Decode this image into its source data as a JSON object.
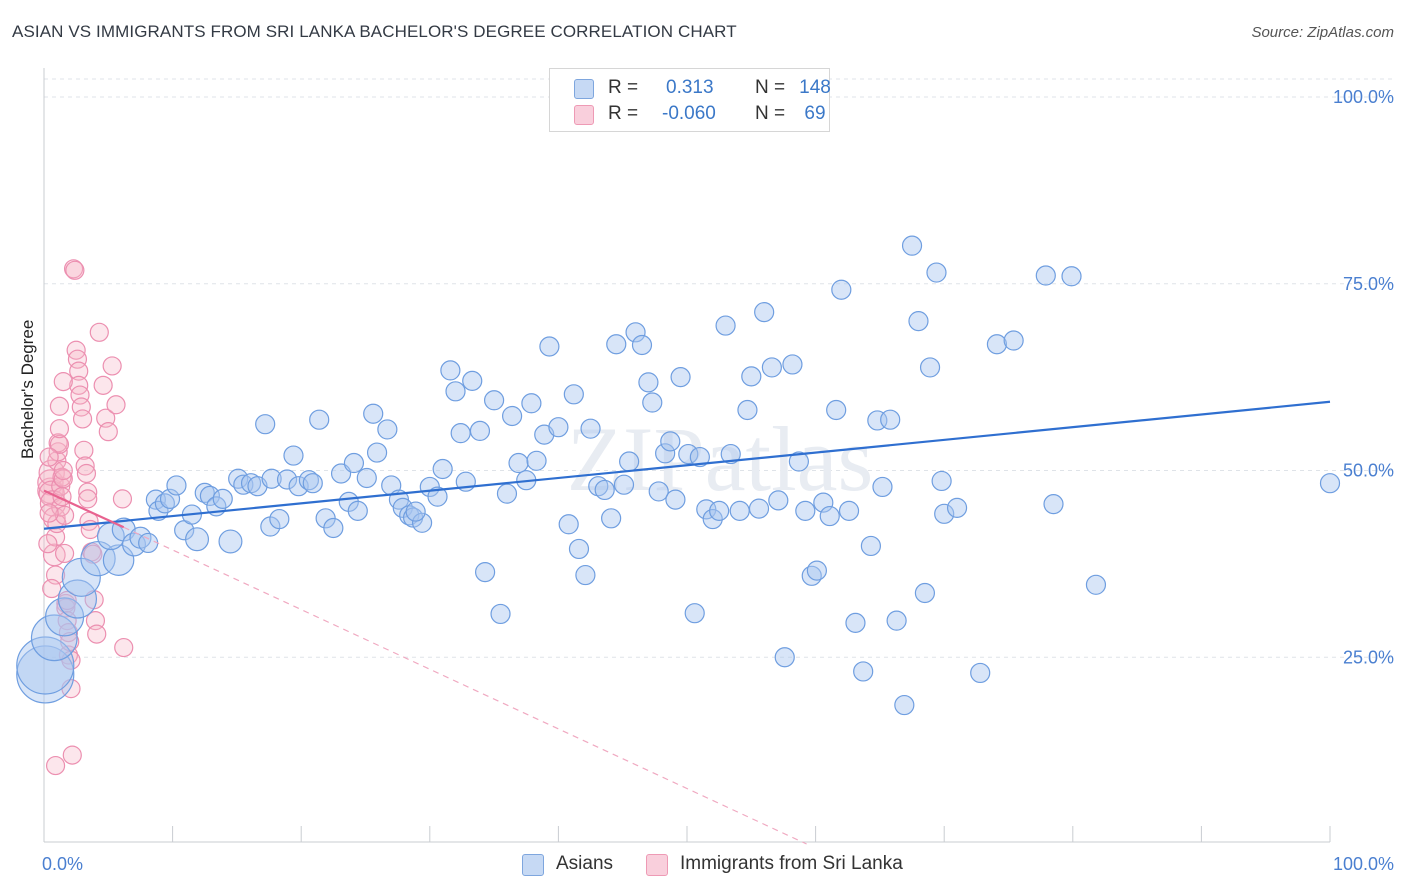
{
  "title": "ASIAN VS IMMIGRANTS FROM SRI LANKA BACHELOR'S DEGREE CORRELATION CHART",
  "source": "Source: ZipAtlas.com",
  "watermark": "ZIPatlas",
  "legend": {
    "rows": [
      {
        "swatch_color": "#a9c6ef",
        "r_label": "R =",
        "r_value": "0.313",
        "n_label": "N =",
        "n_value": "148"
      },
      {
        "swatch_color": "#f5b7c9",
        "r_label": "R =",
        "r_value": "-0.060",
        "n_label": "N =",
        "n_value": "69"
      }
    ]
  },
  "bottom_legend": [
    {
      "label": "Asians",
      "color": "#a9c6ef"
    },
    {
      "label": "Immigrants from Sri Lanka",
      "color": "#f5b7c9"
    }
  ],
  "chart_data": {
    "type": "scatter",
    "title": "ASIAN VS IMMIGRANTS FROM SRI LANKA BACHELOR'S DEGREE CORRELATION CHART",
    "xlabel": "",
    "ylabel": "Bachelor's Degree",
    "xlim": [
      0,
      100
    ],
    "ylim": [
      0,
      100
    ],
    "x_tick_labels": [
      "0.0%",
      "100.0%"
    ],
    "y_ticks": [
      25,
      50,
      75,
      100
    ],
    "y_tick_labels": [
      "25.0%",
      "50.0%",
      "75.0%",
      "100.0%"
    ],
    "grid": "horizontal dashed",
    "colors": {
      "asians": "#4a86d8",
      "sri_lanka": "#ea6f97"
    },
    "series": [
      {
        "name": "Asians",
        "color": "#4a86d8",
        "r": 0.313,
        "n": 148,
        "trend": {
          "x": [
            0,
            100
          ],
          "y": [
            42.2,
            59.2
          ]
        },
        "points": [
          [
            0.1,
            22.7,
            3
          ],
          [
            0.1,
            23.9,
            3
          ],
          [
            0.8,
            27.6,
            2.4
          ],
          [
            1.6,
            30.4,
            2
          ],
          [
            2.6,
            32.8,
            2
          ],
          [
            2.9,
            35.7,
            2
          ],
          [
            4.2,
            38.2,
            1.8
          ],
          [
            5.8,
            38.0,
            1.6
          ],
          [
            5.2,
            41.2,
            1.4
          ],
          [
            6.2,
            42.1,
            1.2
          ],
          [
            7.0,
            40.1,
            1.2
          ],
          [
            7.5,
            41.0,
            1.1
          ],
          [
            8.1,
            40.3,
            1
          ],
          [
            8.7,
            46.1,
            1
          ],
          [
            8.9,
            44.6,
            1
          ],
          [
            9.4,
            45.6,
            1
          ],
          [
            9.8,
            46.2,
            1
          ],
          [
            10.3,
            48.0,
            1
          ],
          [
            10.9,
            42.0,
            1
          ],
          [
            11.5,
            44.1,
            1
          ],
          [
            11.9,
            40.8,
            1.2
          ],
          [
            12.5,
            47.0,
            1
          ],
          [
            12.9,
            46.6,
            1
          ],
          [
            13.4,
            45.2,
            1
          ],
          [
            13.9,
            46.2,
            1
          ],
          [
            14.5,
            40.5,
            1.2
          ],
          [
            15.1,
            48.9,
            1
          ],
          [
            15.5,
            48.1,
            1
          ],
          [
            16.1,
            48.3,
            1
          ],
          [
            16.6,
            47.9,
            1
          ],
          [
            17.2,
            56.2,
            1
          ],
          [
            17.7,
            48.9,
            1
          ],
          [
            17.6,
            42.5,
            1
          ],
          [
            18.3,
            43.5,
            1
          ],
          [
            18.9,
            48.8,
            1
          ],
          [
            19.4,
            52.0,
            1
          ],
          [
            19.8,
            47.9,
            1
          ],
          [
            20.6,
            48.7,
            1
          ],
          [
            20.9,
            48.3,
            1
          ],
          [
            21.4,
            56.8,
            1
          ],
          [
            21.9,
            43.6,
            1
          ],
          [
            22.5,
            42.3,
            1
          ],
          [
            23.1,
            49.6,
            1
          ],
          [
            23.7,
            45.8,
            1
          ],
          [
            24.1,
            51.0,
            1
          ],
          [
            24.4,
            44.6,
            1
          ],
          [
            25.1,
            49.0,
            1
          ],
          [
            25.6,
            57.6,
            1
          ],
          [
            25.9,
            52.4,
            1
          ],
          [
            26.7,
            55.5,
            1
          ],
          [
            27.0,
            48.0,
            1
          ],
          [
            27.6,
            46.1,
            1
          ],
          [
            27.9,
            45.0,
            1
          ],
          [
            28.4,
            44.0,
            1
          ],
          [
            28.7,
            43.7,
            1
          ],
          [
            29.4,
            43.0,
            1
          ],
          [
            30.0,
            47.8,
            1
          ],
          [
            30.6,
            46.5,
            1
          ],
          [
            31.0,
            50.2,
            1
          ],
          [
            31.6,
            63.4,
            1
          ],
          [
            32.0,
            60.6,
            1
          ],
          [
            32.4,
            55.0,
            1
          ],
          [
            32.8,
            48.5,
            1
          ],
          [
            33.3,
            62.0,
            1
          ],
          [
            33.9,
            55.3,
            1
          ],
          [
            34.3,
            36.4,
            1
          ],
          [
            35.0,
            59.4,
            1
          ],
          [
            35.5,
            30.8,
            1
          ],
          [
            36.0,
            46.9,
            1
          ],
          [
            36.4,
            57.3,
            1
          ],
          [
            36.9,
            51.0,
            1
          ],
          [
            37.5,
            48.7,
            1
          ],
          [
            37.9,
            59.0,
            1
          ],
          [
            38.3,
            51.3,
            1
          ],
          [
            38.9,
            54.8,
            1
          ],
          [
            39.3,
            66.6,
            1
          ],
          [
            40.0,
            55.8,
            1
          ],
          [
            40.8,
            42.8,
            1
          ],
          [
            41.2,
            60.2,
            1
          ],
          [
            41.6,
            39.5,
            1
          ],
          [
            42.1,
            36.0,
            1
          ],
          [
            42.5,
            55.6,
            1
          ],
          [
            43.1,
            47.9,
            1
          ],
          [
            43.6,
            47.4,
            1
          ],
          [
            44.1,
            43.6,
            1
          ],
          [
            44.5,
            66.9,
            1
          ],
          [
            45.1,
            48.1,
            1
          ],
          [
            45.5,
            51.2,
            1
          ],
          [
            46.0,
            68.5,
            1
          ],
          [
            46.5,
            66.8,
            1
          ],
          [
            47.0,
            61.8,
            1
          ],
          [
            47.3,
            59.1,
            1
          ],
          [
            47.8,
            47.2,
            1
          ],
          [
            48.3,
            52.3,
            1
          ],
          [
            48.7,
            53.9,
            1
          ],
          [
            49.1,
            46.1,
            1
          ],
          [
            49.5,
            62.5,
            1
          ],
          [
            50.1,
            52.2,
            1
          ],
          [
            50.6,
            30.9,
            1
          ],
          [
            51.0,
            51.8,
            1
          ],
          [
            51.5,
            44.8,
            1
          ],
          [
            52.0,
            43.5,
            1
          ],
          [
            52.5,
            44.6,
            1
          ],
          [
            53.0,
            69.4,
            1
          ],
          [
            53.4,
            52.2,
            1
          ],
          [
            54.1,
            44.6,
            1
          ],
          [
            54.7,
            58.1,
            1
          ],
          [
            55.0,
            62.6,
            1
          ],
          [
            55.6,
            44.9,
            1
          ],
          [
            56.0,
            71.2,
            1
          ],
          [
            56.6,
            63.8,
            1
          ],
          [
            57.1,
            46.0,
            1
          ],
          [
            57.6,
            25.0,
            1
          ],
          [
            58.2,
            64.2,
            1
          ],
          [
            58.7,
            51.2,
            1
          ],
          [
            59.2,
            44.6,
            1
          ],
          [
            59.7,
            35.9,
            1
          ],
          [
            60.1,
            36.6,
            1
          ],
          [
            60.6,
            45.7,
            1
          ],
          [
            61.1,
            43.9,
            1
          ],
          [
            61.6,
            58.1,
            1
          ],
          [
            62.0,
            74.2,
            1
          ],
          [
            62.6,
            44.6,
            1
          ],
          [
            63.1,
            29.6,
            1
          ],
          [
            63.7,
            23.1,
            1
          ],
          [
            64.3,
            39.9,
            1
          ],
          [
            64.8,
            56.7,
            1
          ],
          [
            65.2,
            47.8,
            1
          ],
          [
            65.8,
            56.8,
            1
          ],
          [
            66.3,
            29.9,
            1
          ],
          [
            66.9,
            18.6,
            1
          ],
          [
            67.5,
            80.1,
            1
          ],
          [
            68.0,
            70.0,
            1
          ],
          [
            68.5,
            33.6,
            1
          ],
          [
            68.9,
            63.8,
            1
          ],
          [
            69.4,
            76.5,
            1
          ],
          [
            70.0,
            44.2,
            1
          ],
          [
            72.8,
            22.9,
            1
          ],
          [
            74.1,
            66.9,
            1
          ],
          [
            75.4,
            67.4,
            1
          ],
          [
            77.9,
            76.1,
            1
          ],
          [
            78.5,
            45.5,
            1
          ],
          [
            79.9,
            76.0,
            1
          ],
          [
            81.8,
            34.7,
            1
          ],
          [
            100.0,
            48.3,
            1
          ],
          [
            69.8,
            48.6,
            1
          ],
          [
            71.0,
            45.0,
            1
          ],
          [
            28.9,
            44.5,
            1
          ]
        ]
      },
      {
        "name": "Immigrants from Sri Lanka",
        "color": "#ea6f97",
        "r": -0.06,
        "n": 69,
        "trend": {
          "x": [
            0,
            6.2
          ],
          "y": [
            47.3,
            42.4
          ]
        },
        "trend_ext": {
          "x": [
            6.2,
            100
          ],
          "y": [
            42.4,
            -32.5
          ]
        },
        "points": [
          [
            0.5,
            47.3,
            1.4
          ],
          [
            0.5,
            48.4,
            1.4
          ],
          [
            0.6,
            49.7,
            1.4
          ],
          [
            0.6,
            46.9,
            1.4
          ],
          [
            0.7,
            45.6,
            1.4
          ],
          [
            0.8,
            43.6,
            1.2
          ],
          [
            0.8,
            38.7,
            1.2
          ],
          [
            0.9,
            36.0,
            1
          ],
          [
            0.9,
            41.1,
            1
          ],
          [
            1.0,
            42.9,
            1
          ],
          [
            1.0,
            51.3,
            1
          ],
          [
            1.1,
            52.5,
            1
          ],
          [
            1.1,
            53.7,
            1
          ],
          [
            1.2,
            53.5,
            1
          ],
          [
            1.2,
            55.6,
            1
          ],
          [
            1.3,
            47.9,
            1
          ],
          [
            1.3,
            45.1,
            1
          ],
          [
            1.4,
            49.1,
            1
          ],
          [
            1.4,
            46.5,
            1
          ],
          [
            1.5,
            48.9,
            1
          ],
          [
            1.5,
            50.0,
            1
          ],
          [
            1.6,
            44.0,
            1
          ],
          [
            1.6,
            38.9,
            1
          ],
          [
            1.7,
            32.2,
            1
          ],
          [
            1.7,
            31.6,
            1
          ],
          [
            1.8,
            29.9,
            1
          ],
          [
            1.8,
            32.6,
            1
          ],
          [
            1.9,
            28.3,
            1
          ],
          [
            1.9,
            25.3,
            1
          ],
          [
            2.0,
            27.1,
            1
          ],
          [
            2.1,
            24.6,
            1
          ],
          [
            2.1,
            20.8,
            1
          ],
          [
            2.2,
            11.9,
            1
          ],
          [
            2.3,
            77.0,
            1
          ],
          [
            2.4,
            76.8,
            1
          ],
          [
            2.5,
            66.1,
            1
          ],
          [
            2.6,
            64.9,
            1
          ],
          [
            2.7,
            63.3,
            1
          ],
          [
            2.7,
            61.4,
            1
          ],
          [
            2.8,
            60.1,
            1
          ],
          [
            2.9,
            58.5,
            1
          ],
          [
            3.0,
            56.9,
            1
          ],
          [
            3.1,
            52.7,
            1
          ],
          [
            3.2,
            50.6,
            1
          ],
          [
            3.3,
            49.6,
            1
          ],
          [
            3.4,
            47.1,
            1
          ],
          [
            3.4,
            46.2,
            1
          ],
          [
            3.5,
            43.2,
            1
          ],
          [
            3.6,
            42.1,
            1
          ],
          [
            3.7,
            39.1,
            1
          ],
          [
            3.8,
            38.8,
            1
          ],
          [
            3.9,
            32.7,
            1
          ],
          [
            4.0,
            29.9,
            1
          ],
          [
            4.1,
            28.1,
            1
          ],
          [
            4.3,
            68.5,
            1
          ],
          [
            4.6,
            61.4,
            1
          ],
          [
            4.8,
            57.0,
            1
          ],
          [
            5.0,
            55.2,
            1
          ],
          [
            5.3,
            64.0,
            1
          ],
          [
            5.6,
            58.8,
            1
          ],
          [
            6.1,
            46.2,
            1
          ],
          [
            6.2,
            26.3,
            1
          ],
          [
            0.4,
            51.8,
            1
          ],
          [
            0.4,
            44.3,
            1
          ],
          [
            0.3,
            40.2,
            1
          ],
          [
            0.6,
            34.2,
            1
          ],
          [
            0.9,
            10.5,
            1
          ],
          [
            1.2,
            58.6,
            1
          ],
          [
            1.5,
            61.9,
            1
          ]
        ]
      }
    ]
  }
}
